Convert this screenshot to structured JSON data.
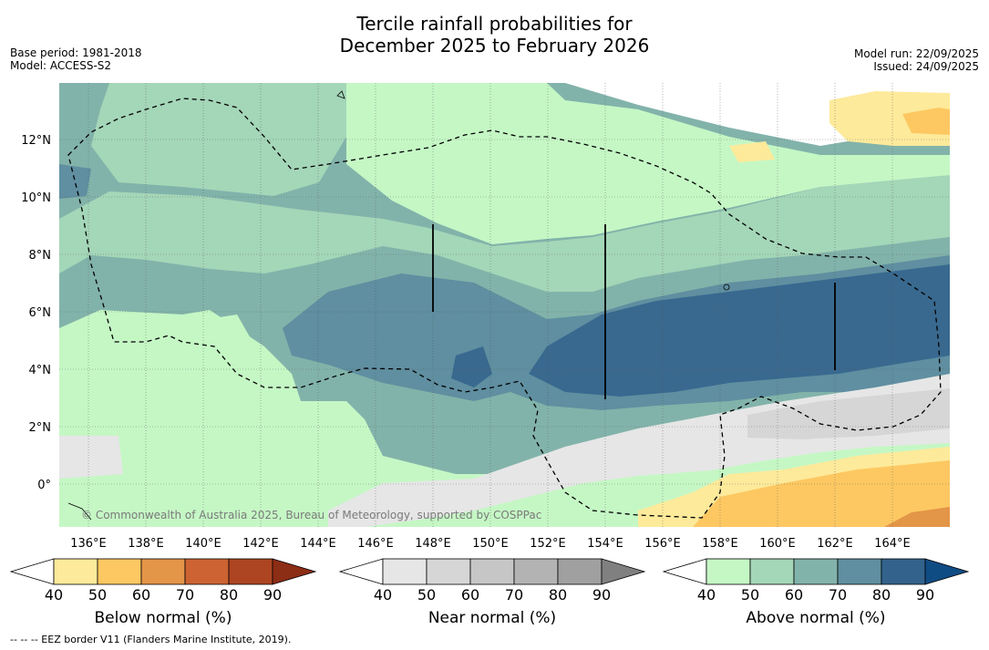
{
  "title": {
    "line1": "Tercile rainfall probabilities for",
    "line2": "December 2025 to February 2026"
  },
  "meta_left": {
    "base_period": "Base period: 1981-2018",
    "model": "Model: ACCESS-S2"
  },
  "meta_right": {
    "model_run": "Model run: 22/09/2025",
    "issued": "Issued: 24/09/2025"
  },
  "map": {
    "lat_labels": [
      "12°N",
      "10°N",
      "8°N",
      "6°N",
      "4°N",
      "2°N",
      "0°"
    ],
    "lon_labels": [
      "136°E",
      "138°E",
      "140°E",
      "142°E",
      "144°E",
      "146°E",
      "148°E",
      "150°E",
      "152°E",
      "154°E",
      "156°E",
      "158°E",
      "160°E",
      "162°E",
      "164°E"
    ],
    "copyright": "© Commonwealth of Australia 2025, Bureau of Meteorology, supported by COSPPac"
  },
  "colorbars": [
    {
      "label": "Below normal (%)",
      "ticks": [
        "40",
        "50",
        "60",
        "70",
        "80",
        "90"
      ],
      "colors": [
        "#fdea9b",
        "#fdc862",
        "#e39548",
        "#cd6332",
        "#ad4522",
        "#8c2d15"
      ]
    },
    {
      "label": "Near normal (%)",
      "ticks": [
        "40",
        "50",
        "60",
        "70",
        "80",
        "90"
      ],
      "colors": [
        "#e6e6e6",
        "#d6d6d6",
        "#c6c6c6",
        "#b3b3b3",
        "#a0a0a0",
        "#808080"
      ]
    },
    {
      "label": "Above normal (%)",
      "ticks": [
        "40",
        "50",
        "60",
        "70",
        "80",
        "90"
      ],
      "colors": [
        "#c5f7c5",
        "#a4d6b8",
        "#82b3aa",
        "#5f8fa0",
        "#33638c",
        "#104c84"
      ]
    }
  ],
  "footnote": "--  --  -- EEZ border V11 (Flanders Marine Institute, 2019).",
  "colors": {
    "near_normal_40": "#e6e6e6",
    "above_normal_40": "#c5f7c5",
    "above_normal_50": "#a4d6b8",
    "above_normal_60": "#82b3aa",
    "above_normal_70": "#5f8fa0",
    "below_normal_40": "#fdea9b",
    "below_normal_50": "#fdc862"
  }
}
